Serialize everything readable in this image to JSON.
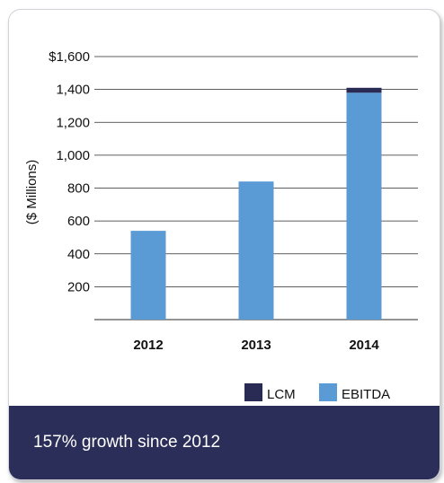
{
  "chart_data": {
    "type": "bar",
    "stacked": true,
    "categories": [
      "2012",
      "2013",
      "2014"
    ],
    "series": [
      {
        "name": "EBITDA",
        "values": [
          540,
          840,
          1380
        ],
        "color": "#5b9bd5"
      },
      {
        "name": "LCM",
        "values": [
          0,
          0,
          30
        ],
        "color": "#2a2b55"
      }
    ],
    "ylabel": "($ Millions)",
    "ylim": [
      0,
      1600
    ],
    "ytick_values": [
      200,
      400,
      600,
      800,
      1000,
      1200,
      1400,
      1600
    ],
    "ytick_labels": [
      "200",
      "400",
      "600",
      "800",
      "1,000",
      "1,200",
      "1,400",
      "$1,600"
    ],
    "grid": true,
    "legend": [
      {
        "label": "LCM",
        "color": "#2a2b55"
      },
      {
        "label": "EBITDA",
        "color": "#5b9bd5"
      }
    ],
    "legend_position": "bottom-right"
  },
  "footer": {
    "text": "157% growth since 2012",
    "background": "#2b2e58"
  }
}
